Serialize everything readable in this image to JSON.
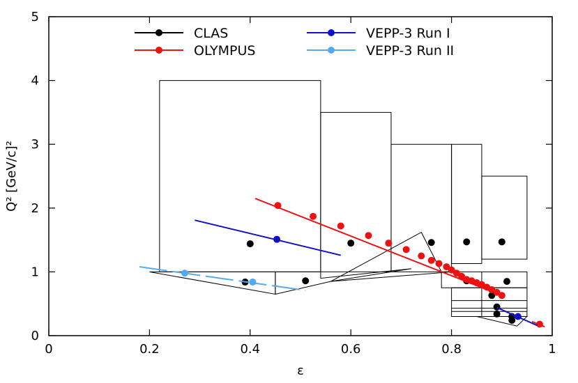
{
  "chart_data": {
    "type": "scatter",
    "xlabel": "ε",
    "ylabel": "Q² [GeV/c]²",
    "xlim": [
      0,
      1
    ],
    "ylim": [
      0,
      5
    ],
    "x_ticks": [
      0,
      0.2,
      0.4,
      0.6,
      0.8,
      1
    ],
    "x_tick_labels": [
      "0",
      "0.2",
      "0.4",
      "0.6",
      "0.8",
      "1"
    ],
    "y_ticks": [
      0,
      1,
      2,
      3,
      4,
      5
    ],
    "y_tick_labels": [
      "0",
      "1",
      "2",
      "3",
      "4",
      "5"
    ],
    "legend": {
      "placement": "top",
      "columns": 2
    },
    "series": [
      {
        "name": "CLAS",
        "color": "#000000",
        "points": [
          {
            "x": 0.4,
            "y": 1.44
          },
          {
            "x": 0.6,
            "y": 1.45
          },
          {
            "x": 0.76,
            "y": 1.46
          },
          {
            "x": 0.83,
            "y": 1.47
          },
          {
            "x": 0.9,
            "y": 1.47
          },
          {
            "x": 0.39,
            "y": 0.84
          },
          {
            "x": 0.51,
            "y": 0.86
          },
          {
            "x": 0.83,
            "y": 0.86
          },
          {
            "x": 0.91,
            "y": 0.85
          },
          {
            "x": 0.88,
            "y": 0.63
          },
          {
            "x": 0.89,
            "y": 0.45
          },
          {
            "x": 0.89,
            "y": 0.34
          },
          {
            "x": 0.92,
            "y": 0.3
          },
          {
            "x": 0.92,
            "y": 0.24
          }
        ],
        "coverage_regions": [
          [
            [
              0.22,
              1.0
            ],
            [
              0.22,
              4.0
            ],
            [
              0.54,
              4.0
            ],
            [
              0.54,
              1.0
            ]
          ],
          [
            [
              0.54,
              1.0
            ],
            [
              0.54,
              3.5
            ],
            [
              0.68,
              3.5
            ],
            [
              0.68,
              1.0
            ]
          ],
          [
            [
              0.68,
              1.0
            ],
            [
              0.68,
              3.0
            ],
            [
              0.8,
              3.0
            ],
            [
              0.8,
              1.0
            ]
          ],
          [
            [
              0.8,
              1.13
            ],
            [
              0.8,
              3.0
            ],
            [
              0.86,
              3.0
            ],
            [
              0.86,
              1.13
            ]
          ],
          [
            [
              0.86,
              1.2
            ],
            [
              0.86,
              2.5
            ],
            [
              0.95,
              2.5
            ],
            [
              0.95,
              1.2
            ]
          ],
          [
            [
              0.2,
              1.0
            ],
            [
              0.45,
              0.65
            ],
            [
              0.45,
              1.0
            ]
          ],
          [
            [
              0.45,
              0.65
            ],
            [
              0.45,
              1.0
            ],
            [
              0.54,
              1.0
            ],
            [
              0.54,
              0.9
            ],
            [
              0.72,
              1.05
            ],
            [
              0.68,
              1.0
            ],
            [
              0.56,
              0.85
            ]
          ],
          [
            [
              0.56,
              0.85
            ],
            [
              0.74,
              1.62
            ],
            [
              0.78,
              1.0
            ],
            [
              0.8,
              1.0
            ]
          ],
          [
            [
              0.78,
              0.75
            ],
            [
              0.78,
              1.0
            ],
            [
              0.95,
              1.0
            ],
            [
              0.95,
              0.75
            ]
          ],
          [
            [
              0.8,
              0.3
            ],
            [
              0.8,
              0.75
            ],
            [
              0.95,
              0.75
            ],
            [
              0.95,
              0.3
            ]
          ],
          [
            [
              0.85,
              0.3
            ],
            [
              0.93,
              0.15
            ],
            [
              0.95,
              0.3
            ]
          ]
        ]
      },
      {
        "name": "OLYMPUS",
        "color": "#ee1111",
        "points": [
          {
            "x": 0.455,
            "y": 2.04
          },
          {
            "x": 0.525,
            "y": 1.87
          },
          {
            "x": 0.58,
            "y": 1.72
          },
          {
            "x": 0.635,
            "y": 1.57
          },
          {
            "x": 0.675,
            "y": 1.45
          },
          {
            "x": 0.71,
            "y": 1.35
          },
          {
            "x": 0.74,
            "y": 1.25
          },
          {
            "x": 0.76,
            "y": 1.18
          },
          {
            "x": 0.775,
            "y": 1.13
          },
          {
            "x": 0.79,
            "y": 1.08
          },
          {
            "x": 0.8,
            "y": 1.03
          },
          {
            "x": 0.81,
            "y": 0.98
          },
          {
            "x": 0.82,
            "y": 0.93
          },
          {
            "x": 0.83,
            "y": 0.88
          },
          {
            "x": 0.84,
            "y": 0.86
          },
          {
            "x": 0.85,
            "y": 0.83
          },
          {
            "x": 0.86,
            "y": 0.8
          },
          {
            "x": 0.87,
            "y": 0.76
          },
          {
            "x": 0.88,
            "y": 0.72
          },
          {
            "x": 0.89,
            "y": 0.68
          },
          {
            "x": 0.9,
            "y": 0.63
          },
          {
            "x": 0.975,
            "y": 0.18
          }
        ],
        "line": [
          [
            0.41,
            2.15
          ],
          [
            0.9,
            0.63
          ]
        ],
        "line2": [
          [
            0.96,
            0.22
          ],
          [
            0.985,
            0.14
          ]
        ]
      },
      {
        "name": "VEPP-3 Run I",
        "color": "#1010cc",
        "points": [
          {
            "x": 0.453,
            "y": 1.51
          },
          {
            "x": 0.932,
            "y": 0.3
          }
        ],
        "line": [
          [
            0.29,
            1.81
          ],
          [
            0.58,
            1.26
          ]
        ],
        "line2": [
          [
            0.89,
            0.44
          ],
          [
            0.97,
            0.16
          ]
        ]
      },
      {
        "name": "VEPP-3 Run II",
        "color": "#55aaee",
        "points": [
          {
            "x": 0.27,
            "y": 0.98
          },
          {
            "x": 0.405,
            "y": 0.84
          }
        ],
        "line": [
          [
            0.18,
            1.08
          ],
          [
            0.51,
            0.71
          ]
        ],
        "dashed": true
      }
    ]
  }
}
